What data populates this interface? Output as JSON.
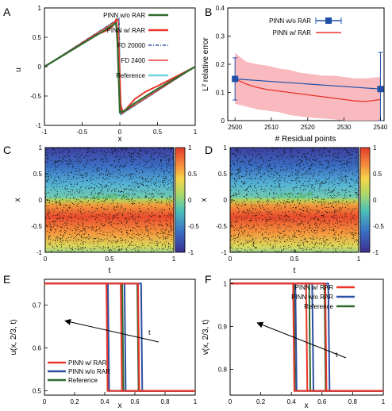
{
  "colors": {
    "red": "#e8352b",
    "green": "#2e6b2e",
    "blue": "#2c4fa3",
    "cyan": "#6fd3e0",
    "band": "#f7b3b8",
    "marker": "#1f50a8"
  },
  "panels": {
    "A": {
      "letter": "A",
      "xlabel": "x",
      "ylabel": "u",
      "xticks": [
        "-1",
        "-0.5",
        "0",
        "0.5",
        "1"
      ],
      "yticks": [
        "-1",
        "-0.5",
        "0",
        "0.5",
        "1"
      ],
      "legend": [
        "PINN w/o RAR",
        "PINN w/ RAR",
        "FD 20000",
        "FD 2400",
        "Reference"
      ]
    },
    "B": {
      "letter": "B",
      "xlabel": "# Residual points",
      "ylabel": "L² relative error",
      "xticks": [
        "2500",
        "2510",
        "2520",
        "2530",
        "2540"
      ],
      "yticks": [
        "0",
        "0.1",
        "0.2",
        "0.3",
        "0.4"
      ],
      "legend": [
        "PINN w/o RAR",
        "PINN w/ RAR"
      ]
    },
    "C": {
      "letter": "C",
      "xlabel": "t",
      "ylabel": "x",
      "xticks": [
        "0",
        "0.5",
        "1"
      ],
      "yticks": [
        "-1",
        "-0.5",
        "0",
        "0.5",
        "1"
      ],
      "cbticks": [
        "-1",
        "-0.5",
        "0",
        "0.5",
        "1"
      ]
    },
    "D": {
      "letter": "D",
      "xlabel": "t",
      "ylabel": "x",
      "xticks": [
        "0",
        "0.5",
        "1"
      ],
      "yticks": [
        "-1",
        "-0.5",
        "0",
        "0.5",
        "1"
      ],
      "cbticks": [
        "-1",
        "-0.5",
        "0",
        "0.5",
        "1"
      ]
    },
    "E": {
      "letter": "E",
      "xlabel": "x",
      "ylabel": "u(x, 2/3, t)",
      "xticks": [
        "0",
        "0.2",
        "0.4",
        "0.6",
        "0.8",
        "1"
      ],
      "yticks": [
        "0.5",
        "0.6",
        "0.7"
      ],
      "legend": [
        "PINN w/ RAR",
        "PINN w/o RAR",
        "Reference"
      ],
      "arrow_label": "t"
    },
    "F": {
      "letter": "F",
      "xlabel": "x",
      "ylabel": "v(x, 2/3, t)",
      "xticks": [
        "0",
        "0.2",
        "0.4",
        "0.6",
        "0.8",
        "1"
      ],
      "yticks": [
        "0.8",
        "0.9",
        "1"
      ],
      "legend": [
        "PINN w/ RAR",
        "PINN w/o RAR",
        "Reference"
      ],
      "arrow_label": "t"
    }
  },
  "chart_data": [
    {
      "panel": "A",
      "type": "line",
      "xlim": [
        -1,
        1
      ],
      "ylim": [
        -1,
        1
      ],
      "series": [
        {
          "name": "PINN w/o RAR",
          "color": "#2e6b2e",
          "x": [
            -1,
            -0.2,
            -0.13,
            -0.05,
            -0.03,
            0.0,
            0.05,
            0.2,
            0.5,
            1
          ],
          "y": [
            0,
            0.62,
            0.68,
            0.74,
            0.4,
            -0.78,
            -0.76,
            -0.62,
            -0.38,
            0
          ]
        },
        {
          "name": "PINN w/ RAR",
          "color": "#e8352b",
          "x": [
            -1,
            -0.3,
            -0.2,
            -0.1,
            -0.05,
            -0.03,
            0.0,
            0.04,
            0.1,
            0.2,
            0.35,
            0.5,
            0.7,
            1
          ],
          "y": [
            0,
            0.55,
            0.6,
            0.68,
            0.8,
            0.5,
            -0.6,
            -0.78,
            -0.7,
            -0.55,
            -0.42,
            -0.33,
            -0.2,
            0
          ]
        },
        {
          "name": "FD 20000",
          "color": "#2c4fa3",
          "x": [
            -1,
            -0.01,
            0.01,
            1
          ],
          "y": [
            0,
            0.82,
            -0.82,
            0
          ]
        },
        {
          "name": "FD 2400",
          "color": "#e8352b",
          "x": [
            -1,
            -0.02,
            0.02,
            1
          ],
          "y": [
            0,
            0.8,
            -0.8,
            0
          ]
        },
        {
          "name": "Reference",
          "color": "#6fd3e0",
          "x": [
            -1,
            -0.01,
            0.01,
            1
          ],
          "y": [
            0,
            0.82,
            -0.82,
            0
          ]
        }
      ]
    },
    {
      "panel": "B",
      "type": "line",
      "xlim": [
        2498,
        2541
      ],
      "ylim": [
        0,
        0.4
      ],
      "series": [
        {
          "name": "PINN w/o RAR",
          "color": "#1f50a8",
          "x": [
            2500,
            2540
          ],
          "y": [
            0.148,
            0.112
          ],
          "err": [
            0.075,
            0.13
          ]
        },
        {
          "name": "PINN w/ RAR",
          "color": "#e8352b",
          "x": [
            2500,
            2503,
            2506,
            2509,
            2512,
            2515,
            2518,
            2521,
            2524,
            2527,
            2530,
            2533,
            2536,
            2540
          ],
          "y": [
            0.148,
            0.13,
            0.118,
            0.11,
            0.105,
            0.1,
            0.095,
            0.09,
            0.085,
            0.08,
            0.075,
            0.07,
            0.068,
            0.075
          ],
          "band_lower": [
            0.06,
            0.05,
            0.04,
            0.035,
            0.03,
            0.02,
            0.015,
            0.01,
            0.008,
            0.005,
            0.0,
            0.0,
            0.0,
            0.0
          ],
          "band_upper": [
            0.24,
            0.21,
            0.2,
            0.195,
            0.185,
            0.18,
            0.17,
            0.165,
            0.16,
            0.16,
            0.155,
            0.15,
            0.15,
            0.155
          ]
        }
      ]
    },
    {
      "panel": "C",
      "type": "heatmap",
      "xlim": [
        0,
        1
      ],
      "ylim": [
        -1,
        1
      ],
      "clim": [
        -1,
        1
      ]
    },
    {
      "panel": "D",
      "type": "heatmap",
      "xlim": [
        0,
        1
      ],
      "ylim": [
        -1,
        1
      ],
      "clim": [
        -1,
        1
      ]
    },
    {
      "panel": "E",
      "type": "line",
      "xlim": [
        0,
        1
      ],
      "ylim": [
        0.49,
        0.76
      ],
      "series": [
        {
          "name": "PINN w/ RAR",
          "color": "#e8352b",
          "steps": [
            0.415,
            0.51,
            0.625
          ],
          "low": 0.5,
          "high": 0.75
        },
        {
          "name": "PINN w/o RAR",
          "color": "#2c4fa3",
          "steps": [
            0.425,
            0.535,
            0.645
          ],
          "low": 0.5,
          "high": 0.75
        },
        {
          "name": "Reference",
          "color": "#2e6b2e",
          "steps": [
            0.42,
            0.52,
            0.62
          ],
          "low": 0.5,
          "high": 0.75
        }
      ]
    },
    {
      "panel": "F",
      "type": "line",
      "xlim": [
        0,
        1
      ],
      "ylim": [
        0.74,
        1.01
      ],
      "series": [
        {
          "name": "PINN w/ RAR",
          "color": "#e8352b",
          "steps": [
            0.415,
            0.5,
            0.625
          ],
          "low": 0.75,
          "high": 1.0
        },
        {
          "name": "PINN w/o RAR",
          "color": "#2c4fa3",
          "steps": [
            0.43,
            0.54,
            0.645
          ],
          "low": 0.75,
          "high": 1.0
        },
        {
          "name": "Reference",
          "color": "#2e6b2e",
          "steps": [
            0.42,
            0.52,
            0.62
          ],
          "low": 0.75,
          "high": 1.0
        }
      ]
    }
  ]
}
